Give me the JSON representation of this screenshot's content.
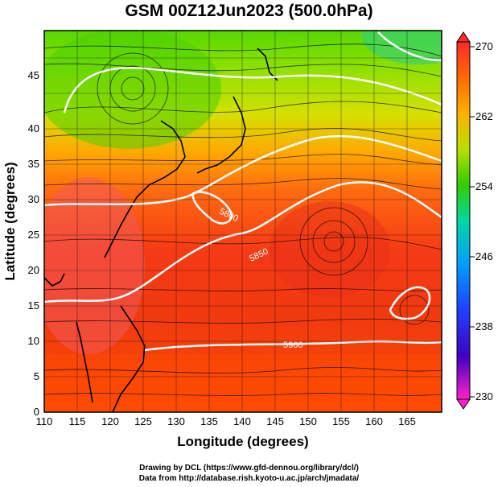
{
  "title": "GSM 00Z12Jun2023 (500.0hPa)",
  "xlabel": "Longitude (degrees)",
  "ylabel": "Latitude  (degrees)",
  "x_ticks": [
    "110",
    "115",
    "120",
    "125",
    "130",
    "135",
    "140",
    "145",
    "150",
    "155",
    "160",
    "165"
  ],
  "y_ticks": [
    "0",
    "5",
    "10",
    "15",
    "20",
    "25",
    "30",
    "35",
    "40",
    "45"
  ],
  "colorbar": {
    "labels": [
      "270",
      "262",
      "254",
      "246",
      "238",
      "230"
    ]
  },
  "contour_labels": [
    "5800",
    "5850",
    "5900"
  ],
  "credits": {
    "line1": "Drawing by DCL (https://www.gfd-dennou.org/library/dcl/)",
    "line2": "Data from http://database.rish.kyoto-u.ac.jp/arch/jmadata/"
  },
  "colors": {
    "warm": "#ff3300",
    "cool": "#33cc00",
    "contour": "#ffffff",
    "coast": "#000000"
  }
}
